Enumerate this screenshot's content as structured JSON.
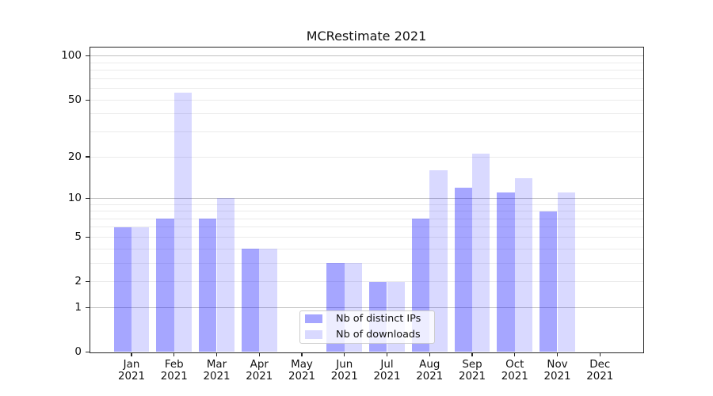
{
  "title": "MCRestimate 2021",
  "chart_data": {
    "type": "bar",
    "title": "MCRestimate 2021",
    "categories": [
      "Jan 2021",
      "Feb 2021",
      "Mar 2021",
      "Apr 2021",
      "May 2021",
      "Jun 2021",
      "Jul 2021",
      "Aug 2021",
      "Sep 2021",
      "Oct 2021",
      "Nov 2021",
      "Dec 2021"
    ],
    "series": [
      {
        "name": "Nb of distinct IPs",
        "color": "rgba(0,0,255,0.35)",
        "values": [
          6,
          7,
          7,
          4,
          0,
          3,
          2,
          7,
          12,
          11,
          8,
          0
        ]
      },
      {
        "name": "Nb of downloads",
        "color": "rgba(0,0,255,0.15)",
        "values": [
          6,
          56,
          10,
          4,
          0,
          3,
          2,
          16,
          21,
          14,
          11,
          0
        ]
      }
    ],
    "xlabel": "",
    "ylabel": "",
    "yscale": "log1p",
    "ylim": [
      0,
      115.2
    ],
    "y_ticks": [
      0,
      1,
      2,
      5,
      10,
      20,
      50,
      100
    ],
    "y_tick_labels": [
      "0",
      "1",
      "2",
      "5",
      "10",
      "20",
      "50",
      "100"
    ],
    "grid": {
      "major_values": [
        1,
        10,
        100
      ],
      "minor_values": [
        2,
        3,
        4,
        5,
        6,
        7,
        8,
        9,
        20,
        30,
        40,
        50,
        60,
        70,
        80,
        90
      ]
    },
    "legend_position": "lower center",
    "axis_color": "#262626",
    "grid_major_color": "#c0c0c0",
    "grid_minor_color": "#ebebeb"
  }
}
